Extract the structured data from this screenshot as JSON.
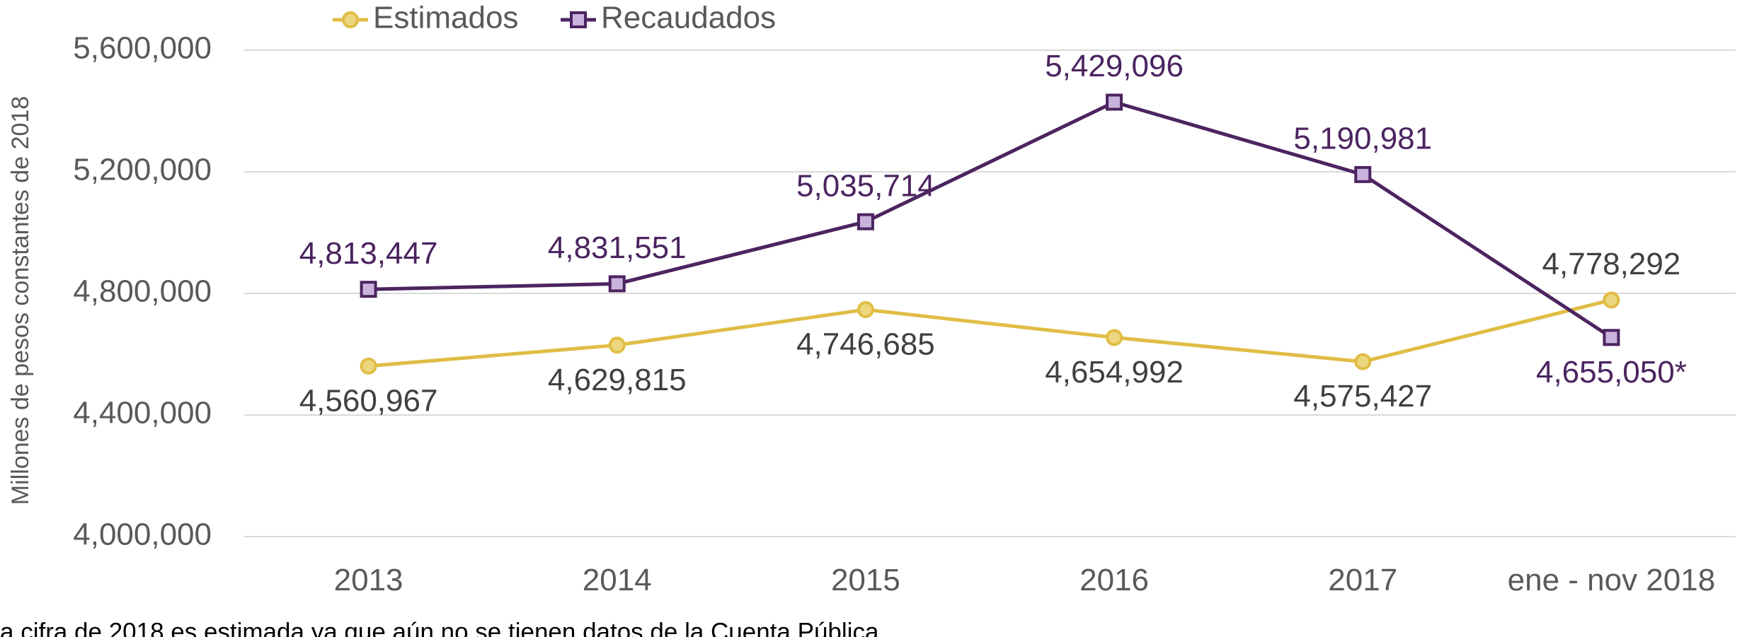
{
  "chart_data": {
    "type": "line",
    "categories": [
      "2013",
      "2014",
      "2015",
      "2016",
      "2017",
      "ene - nov 2018"
    ],
    "series": [
      {
        "name": "Estimados",
        "color": "#e0bd45",
        "marker": "circle",
        "values": [
          4560967,
          4629815,
          4746685,
          4654992,
          4575427,
          4778292
        ],
        "value_labels": [
          "4,560,967",
          "4,629,815",
          "4,746,685",
          "4,654,992",
          "4,575,427",
          "4,778,292"
        ]
      },
      {
        "name": "Recaudados",
        "color": "#4b2460",
        "marker": "square",
        "values": [
          4813447,
          4831551,
          5035714,
          5429096,
          5190981,
          4655050
        ],
        "value_labels": [
          "4,813,447",
          "4,831,551",
          "5,035,714",
          "5,429,096",
          "5,190,981",
          "4,655,050*"
        ]
      }
    ],
    "ylabel": "Millones de pesos constantes de 2018",
    "ylim": [
      4000000,
      5600000
    ],
    "yticks": [
      {
        "value": 4000000,
        "label": "4,000,000"
      },
      {
        "value": 4400000,
        "label": "4,400,000"
      },
      {
        "value": 4800000,
        "label": "4,800,000"
      },
      {
        "value": 5200000,
        "label": "5,200,000"
      },
      {
        "value": 5600000,
        "label": "5,600,000"
      }
    ],
    "grid": true,
    "legend": "top",
    "note": "a cifra de 2018 es estimada ya que aún no se tienen datos de la Cuenta Pública"
  }
}
